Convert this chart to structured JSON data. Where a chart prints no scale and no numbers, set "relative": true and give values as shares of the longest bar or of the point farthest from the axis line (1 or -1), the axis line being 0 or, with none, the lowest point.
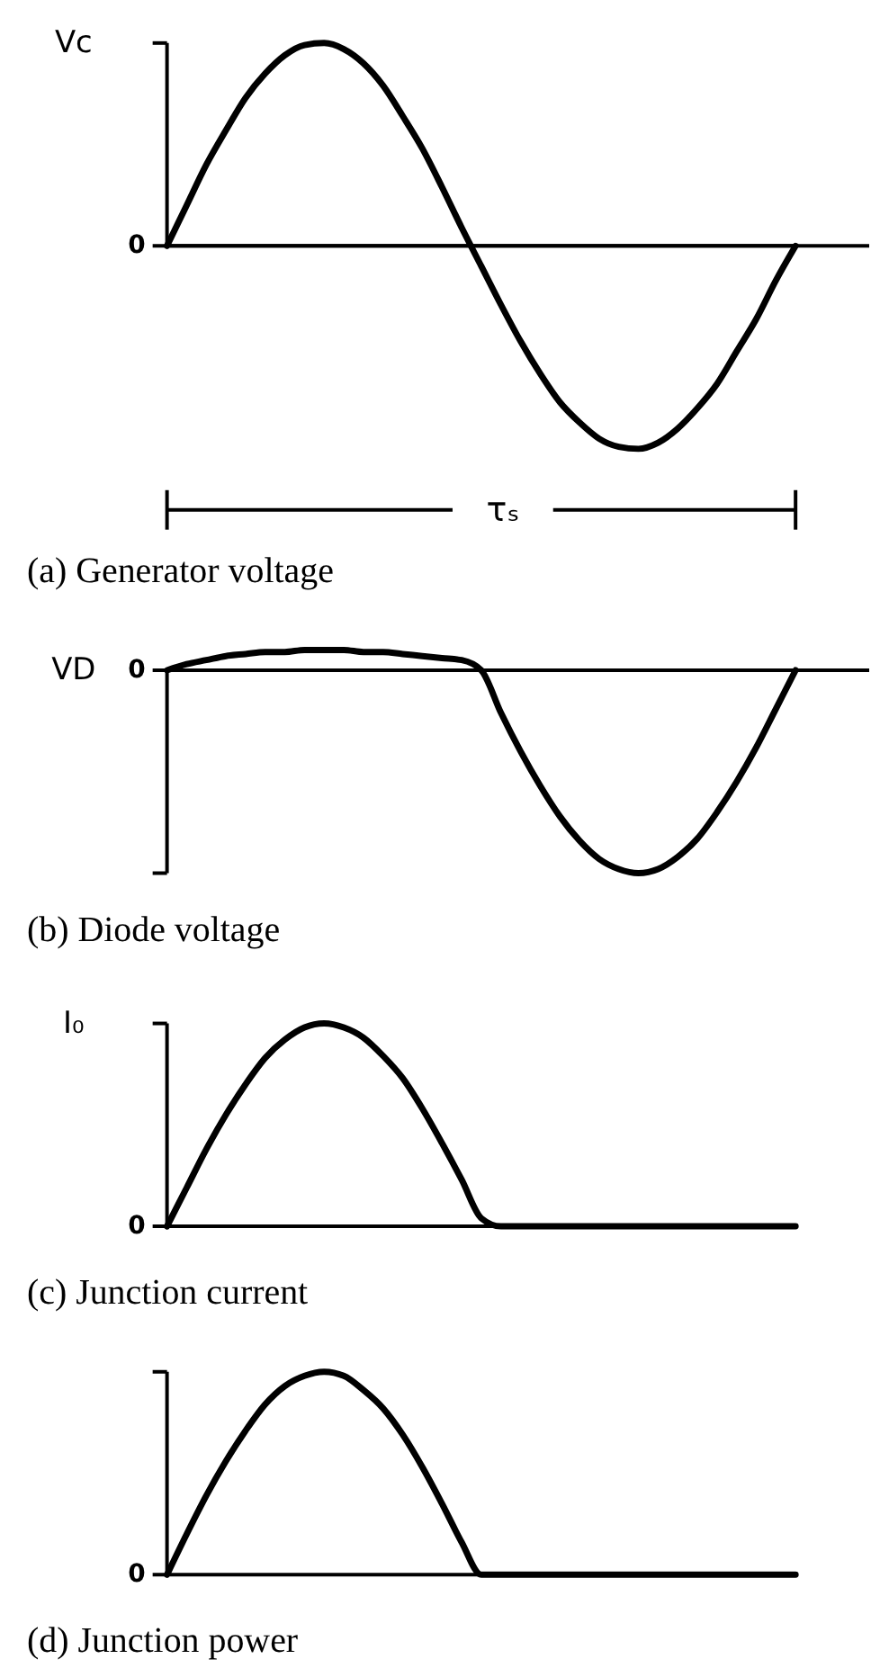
{
  "chart_data": [
    {
      "type": "line",
      "title": "(a) Generator voltage",
      "ylabel": "Vc",
      "xlabel": "τₛ",
      "relative": true,
      "color": "#000000",
      "categories": [
        null,
        null,
        null,
        null,
        null,
        null,
        null,
        null,
        null,
        null,
        null,
        null,
        null,
        null,
        null,
        null,
        null,
        null,
        null,
        null,
        null,
        null,
        null,
        null,
        null,
        null,
        null,
        null,
        null,
        null,
        null,
        null,
        null
      ],
      "values": [
        0,
        0.2,
        0.4,
        0.57,
        0.73,
        0.85,
        0.94,
        0.99,
        1,
        0.97,
        0.9,
        0.79,
        0.64,
        0.48,
        0.29,
        0.09,
        -0.1,
        -0.29,
        -0.47,
        -0.63,
        -0.77,
        -0.87,
        -0.95,
        -0.99,
        -1,
        -0.97,
        -0.9,
        -0.8,
        -0.68,
        -0.52,
        -0.36,
        -0.17,
        0
      ],
      "ref_lines": [
        {
          "axis": "y",
          "value": 0
        }
      ],
      "annotations": [
        "0"
      ]
    },
    {
      "type": "line",
      "title": "(b) Diode voltage",
      "ylabel": "VD",
      "relative": true,
      "color": "#000000",
      "categories": [
        null,
        null,
        null,
        null,
        null,
        null,
        null,
        null,
        null,
        null,
        null,
        null,
        null,
        null,
        null,
        null,
        null,
        null,
        null,
        null,
        null,
        null,
        null,
        null,
        null,
        null,
        null,
        null,
        null,
        null,
        null,
        null,
        null
      ],
      "values": [
        0,
        0.03,
        0.05,
        0.07,
        0.08,
        0.09,
        0.09,
        0.1,
        0.1,
        0.1,
        0.09,
        0.09,
        0.08,
        0.07,
        0.06,
        0.05,
        0,
        -0.21,
        -0.4,
        -0.57,
        -0.72,
        -0.84,
        -0.93,
        -0.98,
        -1,
        -0.98,
        -0.92,
        -0.83,
        -0.7,
        -0.55,
        -0.38,
        -0.19,
        0
      ],
      "ref_lines": [
        {
          "axis": "y",
          "value": 0
        }
      ],
      "annotations": [
        "0"
      ]
    },
    {
      "type": "line",
      "title": "(c) Junction current",
      "ylabel": "I₀",
      "relative": true,
      "color": "#000000",
      "categories": [
        null,
        null,
        null,
        null,
        null,
        null,
        null,
        null,
        null,
        null,
        null,
        null,
        null,
        null,
        null,
        null,
        null,
        null,
        null,
        null,
        null,
        null,
        null,
        null,
        null,
        null,
        null,
        null,
        null,
        null,
        null,
        null,
        null
      ],
      "values": [
        0,
        0.19,
        0.38,
        0.55,
        0.7,
        0.83,
        0.92,
        0.98,
        1,
        0.98,
        0.93,
        0.84,
        0.73,
        0.58,
        0.41,
        0.23,
        0.04,
        0,
        0,
        0,
        0,
        0,
        0,
        0,
        0,
        0,
        0,
        0,
        0,
        0,
        0,
        0,
        0
      ],
      "annotations": [
        "0"
      ]
    },
    {
      "type": "line",
      "title": "(d) Junction power",
      "relative": true,
      "color": "#000000",
      "categories": [
        null,
        null,
        null,
        null,
        null,
        null,
        null,
        null,
        null,
        null,
        null,
        null,
        null,
        null,
        null,
        null,
        null,
        null,
        null,
        null,
        null,
        null,
        null,
        null,
        null,
        null,
        null,
        null,
        null,
        null,
        null,
        null,
        null
      ],
      "values": [
        0,
        0.2,
        0.39,
        0.56,
        0.71,
        0.84,
        0.93,
        0.98,
        1,
        0.98,
        0.91,
        0.82,
        0.69,
        0.53,
        0.35,
        0.16,
        0,
        0,
        0,
        0,
        0,
        0,
        0,
        0,
        0,
        0,
        0,
        0,
        0,
        0,
        0,
        0,
        0
      ],
      "annotations": [
        "0"
      ]
    }
  ]
}
